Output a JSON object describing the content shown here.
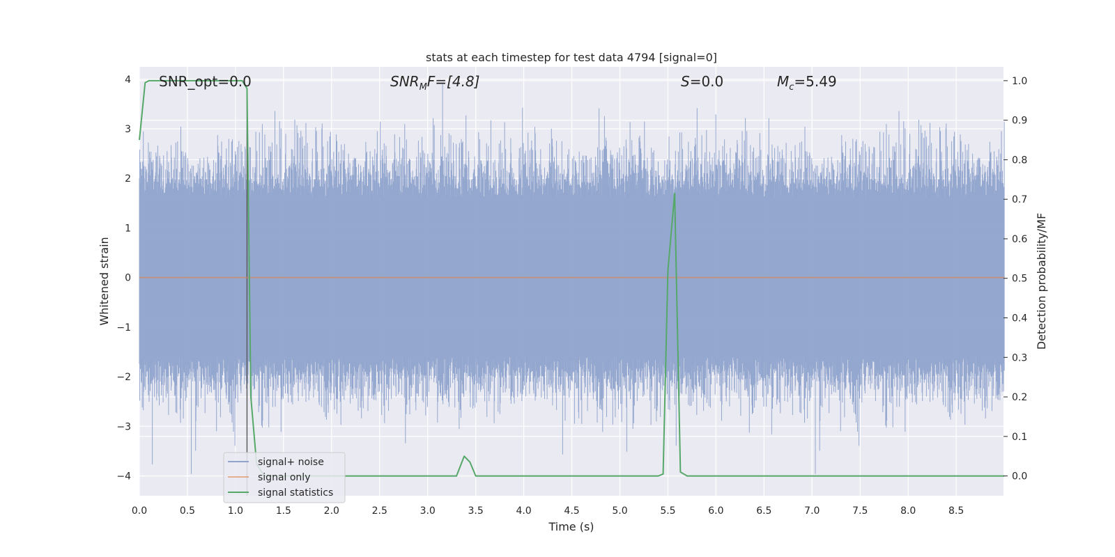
{
  "chart_data": {
    "type": "line",
    "title": "stats at each timestep for test data 4794 [signal=0]",
    "xlabel": "Time (s)",
    "ylabel": "Whitened strain",
    "y2label": "Detection probability/MF",
    "xlim": [
      0.0,
      9.0
    ],
    "ylim": [
      -4.4,
      4.25
    ],
    "y2lim": [
      -0.05,
      1.035
    ],
    "x_ticks": [
      "0.0",
      "0.5",
      "1.0",
      "1.5",
      "2.0",
      "2.5",
      "3.0",
      "3.5",
      "4.0",
      "4.5",
      "5.0",
      "5.5",
      "6.0",
      "6.5",
      "7.0",
      "7.5",
      "8.0",
      "8.5"
    ],
    "y_ticks": [
      "4",
      "3",
      "2",
      "1",
      "0",
      "−1",
      "−2",
      "−3",
      "−4"
    ],
    "y2_ticks": [
      "1.0",
      "0.9",
      "0.8",
      "0.7",
      "0.6",
      "0.5",
      "0.4",
      "0.3",
      "0.2",
      "0.1",
      "0.0"
    ],
    "grid": true,
    "legend_position": "bottom-left",
    "annotations": {
      "snr_opt": "SNR_opt=0.0",
      "snr_mf_main": "SNR",
      "snr_mf_sub": "M",
      "snr_mf_rest": "F=[4.8]",
      "s_main": "S",
      "s_rest": "=0.0",
      "mc_main": "M",
      "mc_sub": "c",
      "mc_rest": "=5.49"
    },
    "marker_line_x": 1.12,
    "series": [
      {
        "name": "signal+ noise",
        "color": "#8fa3cc",
        "axis": "left",
        "style": "noise",
        "typical_amplitude": 1.6,
        "max_value": 3.9,
        "min_value": -4.0
      },
      {
        "name": "signal only",
        "color": "#dd8452",
        "axis": "left",
        "x": [
          0.0,
          9.0
        ],
        "values": [
          0.0,
          0.0
        ]
      },
      {
        "name": "signal statistics",
        "color": "#55a868",
        "axis": "right",
        "x": [
          0.0,
          0.06,
          0.1,
          0.5,
          1.0,
          1.07,
          1.12,
          1.16,
          1.22,
          1.3,
          3.3,
          3.38,
          3.44,
          3.5,
          4.4,
          4.5,
          5.4,
          5.45,
          5.5,
          5.57,
          5.63,
          5.7,
          9.0
        ],
        "values": [
          0.85,
          0.995,
          1.0,
          1.0,
          1.0,
          1.0,
          0.98,
          0.2,
          0.03,
          0.0,
          0.0,
          0.05,
          0.035,
          0.0,
          0.0,
          0.0,
          0.0,
          0.005,
          0.52,
          0.715,
          0.01,
          0.0,
          0.0
        ]
      }
    ]
  }
}
